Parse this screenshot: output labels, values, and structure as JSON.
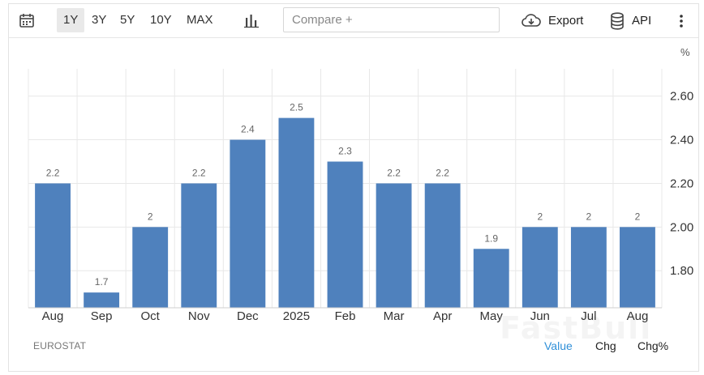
{
  "toolbar": {
    "ranges": [
      "1Y",
      "3Y",
      "5Y",
      "10Y",
      "MAX"
    ],
    "active_range": "1Y",
    "compare_placeholder": "Compare +",
    "export_label": "Export",
    "api_label": "API"
  },
  "footer": {
    "source": "EUROSTAT",
    "modes": [
      "Value",
      "Chg",
      "Chg%"
    ],
    "active_mode": "Value",
    "watermark": "FastBull"
  },
  "colors": {
    "bar": "#4f81bd",
    "active_mode": "#2f8fd8",
    "grid": "#e8e8e8"
  },
  "chart_data": {
    "type": "bar",
    "unit": "%",
    "categories": [
      "Aug",
      "Sep",
      "Oct",
      "Nov",
      "Dec",
      "2025",
      "Feb",
      "Mar",
      "Apr",
      "May",
      "Jun",
      "Jul",
      "Aug"
    ],
    "values": [
      2.2,
      1.7,
      2.0,
      2.2,
      2.4,
      2.5,
      2.3,
      2.2,
      2.2,
      1.9,
      2.0,
      2.0,
      2.0
    ],
    "value_labels": [
      "2.2",
      "1.7",
      "2",
      "2.2",
      "2.4",
      "2.5",
      "2.3",
      "2.2",
      "2.2",
      "1.9",
      "2",
      "2",
      "2"
    ],
    "y_ticks": [
      "2.60",
      "2.40",
      "2.20",
      "2.00",
      "1.80"
    ],
    "y_tick_values": [
      2.6,
      2.4,
      2.2,
      2.0,
      1.8
    ],
    "ylim": [
      1.63,
      2.725
    ],
    "y_axis_side": "right",
    "grid": true,
    "legend": "none"
  }
}
